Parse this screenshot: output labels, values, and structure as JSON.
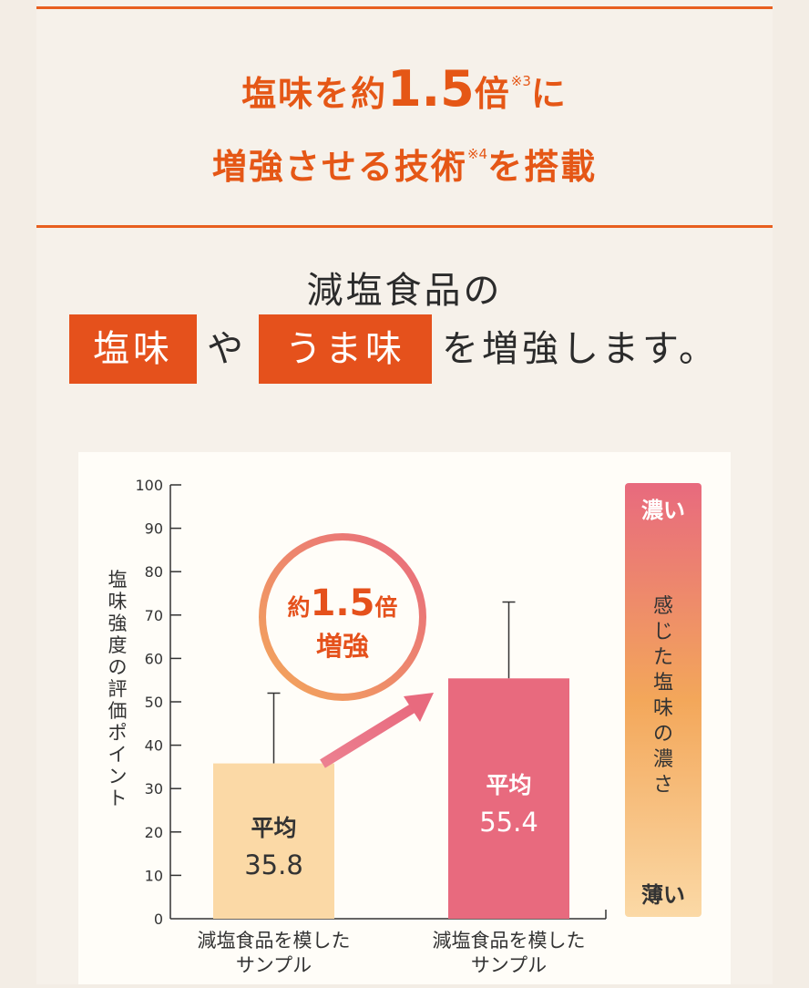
{
  "headline": {
    "line1_pre": "塩味を約",
    "line1_num": "1.5",
    "line1_mid": "倍",
    "line1_note": "※3",
    "line1_post": "に",
    "line2_pre": "増強させる技術",
    "line2_note": "※4",
    "line2_post": "を搭載"
  },
  "subhead": {
    "line1": "減塩食品の",
    "tag1": "塩味",
    "join": "や",
    "tag2": "うま味",
    "tail": "を増強します。"
  },
  "colors": {
    "accent": "#e5511c",
    "bar1": "#fbd9a6",
    "bar2": "#e86a7e",
    "gradient_top": "#e86a7e",
    "gradient_mid": "#f3a75a",
    "gradient_bottom": "#fbd9a6"
  },
  "chart_data": {
    "type": "bar",
    "ylabel": "塩味強度の評価ポイント",
    "ylim": [
      0,
      100
    ],
    "yticks": [
      "0",
      "10",
      "20",
      "30",
      "40",
      "50",
      "60",
      "70",
      "80",
      "90",
      "100"
    ],
    "categories": [
      "減塩食品を模した\nサンプル",
      "減塩食品を模した\nサンプル"
    ],
    "category_lines": [
      [
        "減塩食品を模した",
        "サンプル"
      ],
      [
        "減塩食品を模した",
        "サンプル"
      ]
    ],
    "values": [
      35.8,
      55.4
    ],
    "error_upper": [
      52,
      73
    ],
    "bar_labels": [
      {
        "title": "平均",
        "value": "35.8"
      },
      {
        "title": "平均",
        "value": "55.4"
      }
    ],
    "badge": {
      "line1_pre": "約",
      "line1_num": "1.5",
      "line1_post": "倍",
      "line2": "増強"
    },
    "scale_bar": {
      "top": "濃い",
      "middle": "感じた塩味の濃さ",
      "bottom": "薄い"
    }
  }
}
